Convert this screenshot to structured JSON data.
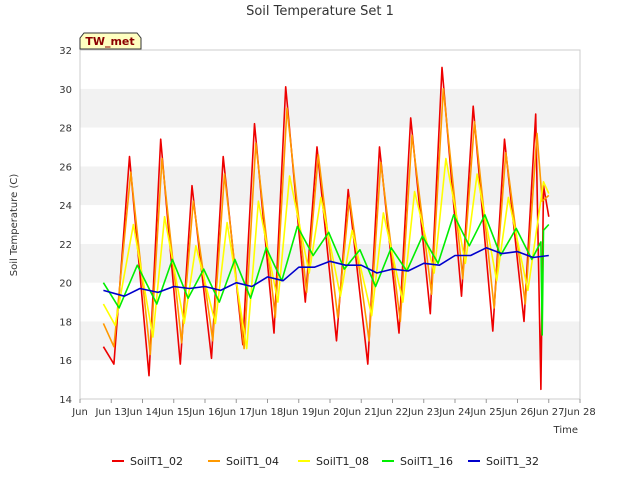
{
  "chart_data": {
    "type": "line",
    "title": "Soil Temperature Set 1",
    "xlabel": "Time",
    "ylabel": "Soil Temperature (C)",
    "badge": "TW_met",
    "xlim": [
      "2024-06-12",
      "2024-06-28"
    ],
    "ylim": [
      14,
      32
    ],
    "yticks": [
      14,
      16,
      18,
      20,
      22,
      24,
      26,
      28,
      30,
      32
    ],
    "xticks": [
      "Jun 13",
      "Jun 14",
      "Jun 15",
      "Jun 16",
      "Jun 17",
      "Jun 18",
      "Jun 19",
      "Jun 20",
      "Jun 21",
      "Jun 22",
      "Jun 23",
      "Jun 24",
      "Jun 25",
      "Jun 26",
      "Jun 27",
      "Jun 28"
    ],
    "x_start_label": "Jun",
    "grid": "horizontal bands",
    "legend_position": "bottom",
    "series": [
      {
        "name": "SoilT1_02",
        "color": "#ee0000",
        "values": [
          [
            "2024-06-12 18:00",
            16.7
          ],
          [
            "2024-06-13 02:00",
            15.8
          ],
          [
            "2024-06-13 14:00",
            26.5
          ],
          [
            "2024-06-14 05:00",
            15.2
          ],
          [
            "2024-06-14 14:00",
            27.4
          ],
          [
            "2024-06-15 05:00",
            15.8
          ],
          [
            "2024-06-15 14:00",
            25.0
          ],
          [
            "2024-06-16 05:00",
            16.1
          ],
          [
            "2024-06-16 14:00",
            26.5
          ],
          [
            "2024-06-17 05:00",
            16.8
          ],
          [
            "2024-06-17 14:00",
            28.2
          ],
          [
            "2024-06-18 05:00",
            17.4
          ],
          [
            "2024-06-18 14:00",
            30.1
          ],
          [
            "2024-06-19 05:00",
            19.0
          ],
          [
            "2024-06-19 14:00",
            27.0
          ],
          [
            "2024-06-20 05:00",
            17.0
          ],
          [
            "2024-06-20 14:00",
            24.8
          ],
          [
            "2024-06-21 05:00",
            15.8
          ],
          [
            "2024-06-21 14:00",
            27.0
          ],
          [
            "2024-06-22 05:00",
            17.4
          ],
          [
            "2024-06-22 14:00",
            28.5
          ],
          [
            "2024-06-23 05:00",
            18.4
          ],
          [
            "2024-06-23 14:00",
            31.1
          ],
          [
            "2024-06-24 05:00",
            19.3
          ],
          [
            "2024-06-24 14:00",
            29.1
          ],
          [
            "2024-06-25 05:00",
            17.5
          ],
          [
            "2024-06-25 14:00",
            27.4
          ],
          [
            "2024-06-26 05:00",
            18.0
          ],
          [
            "2024-06-26 14:00",
            28.7
          ],
          [
            "2024-06-26 18:00",
            14.5
          ],
          [
            "2024-06-26 20:00",
            25.0
          ],
          [
            "2024-06-27 00:00",
            23.4
          ]
        ]
      },
      {
        "name": "SoilT1_04",
        "color": "#ff9900",
        "values": [
          [
            "2024-06-12 18:00",
            17.9
          ],
          [
            "2024-06-13 02:00",
            16.7
          ],
          [
            "2024-06-13 15:00",
            25.7
          ],
          [
            "2024-06-14 06:00",
            16.3
          ],
          [
            "2024-06-14 15:00",
            26.4
          ],
          [
            "2024-06-15 06:00",
            16.9
          ],
          [
            "2024-06-15 15:00",
            24.2
          ],
          [
            "2024-06-16 06:00",
            17.0
          ],
          [
            "2024-06-16 15:00",
            25.6
          ],
          [
            "2024-06-17 06:00",
            16.6
          ],
          [
            "2024-06-17 15:00",
            27.2
          ],
          [
            "2024-06-18 06:00",
            18.2
          ],
          [
            "2024-06-18 15:00",
            29.0
          ],
          [
            "2024-06-19 06:00",
            19.5
          ],
          [
            "2024-06-19 15:00",
            26.6
          ],
          [
            "2024-06-20 06:00",
            18.2
          ],
          [
            "2024-06-20 15:00",
            24.4
          ],
          [
            "2024-06-21 06:00",
            17.0
          ],
          [
            "2024-06-21 15:00",
            26.2
          ],
          [
            "2024-06-22 06:00",
            18.0
          ],
          [
            "2024-06-22 15:00",
            27.6
          ],
          [
            "2024-06-23 06:00",
            19.4
          ],
          [
            "2024-06-23 15:00",
            30.0
          ],
          [
            "2024-06-24 06:00",
            20.2
          ],
          [
            "2024-06-24 15:00",
            28.3
          ],
          [
            "2024-06-25 06:00",
            18.7
          ],
          [
            "2024-06-25 15:00",
            26.7
          ],
          [
            "2024-06-26 06:00",
            18.9
          ],
          [
            "2024-06-26 15:00",
            27.7
          ],
          [
            "2024-06-26 19:00",
            24.2
          ],
          [
            "2024-06-27 00:00",
            24.5
          ]
        ]
      },
      {
        "name": "SoilT1_08",
        "color": "#ffff00",
        "values": [
          [
            "2024-06-12 18:00",
            18.9
          ],
          [
            "2024-06-13 03:00",
            17.8
          ],
          [
            "2024-06-13 17:00",
            23.0
          ],
          [
            "2024-06-14 08:00",
            17.2
          ],
          [
            "2024-06-14 17:00",
            23.4
          ],
          [
            "2024-06-15 08:00",
            17.9
          ],
          [
            "2024-06-15 17:00",
            21.9
          ],
          [
            "2024-06-16 08:00",
            17.9
          ],
          [
            "2024-06-16 17:00",
            23.1
          ],
          [
            "2024-06-17 08:00",
            16.6
          ],
          [
            "2024-06-17 17:00",
            24.2
          ],
          [
            "2024-06-18 08:00",
            19.0
          ],
          [
            "2024-06-18 17:00",
            25.5
          ],
          [
            "2024-06-19 08:00",
            20.5
          ],
          [
            "2024-06-19 17:00",
            24.4
          ],
          [
            "2024-06-20 08:00",
            19.3
          ],
          [
            "2024-06-20 17:00",
            22.7
          ],
          [
            "2024-06-21 08:00",
            18.3
          ],
          [
            "2024-06-21 17:00",
            23.6
          ],
          [
            "2024-06-22 08:00",
            19.0
          ],
          [
            "2024-06-22 17:00",
            24.7
          ],
          [
            "2024-06-23 08:00",
            20.5
          ],
          [
            "2024-06-23 17:00",
            26.4
          ],
          [
            "2024-06-24 08:00",
            21.0
          ],
          [
            "2024-06-24 17:00",
            25.6
          ],
          [
            "2024-06-25 08:00",
            20.1
          ],
          [
            "2024-06-25 17:00",
            24.4
          ],
          [
            "2024-06-26 08:00",
            19.6
          ],
          [
            "2024-06-26 20:00",
            25.2
          ],
          [
            "2024-06-27 00:00",
            24.6
          ]
        ]
      },
      {
        "name": "SoilT1_16",
        "color": "#00ee00",
        "values": [
          [
            "2024-06-12 18:00",
            20.0
          ],
          [
            "2024-06-13 06:00",
            18.7
          ],
          [
            "2024-06-13 20:00",
            20.9
          ],
          [
            "2024-06-14 11:00",
            18.9
          ],
          [
            "2024-06-14 23:00",
            21.2
          ],
          [
            "2024-06-15 11:00",
            19.2
          ],
          [
            "2024-06-15 23:00",
            20.7
          ],
          [
            "2024-06-16 11:00",
            19.0
          ],
          [
            "2024-06-16 23:00",
            21.2
          ],
          [
            "2024-06-17 11:00",
            19.2
          ],
          [
            "2024-06-17 23:00",
            21.8
          ],
          [
            "2024-06-18 11:00",
            20.1
          ],
          [
            "2024-06-18 23:00",
            22.9
          ],
          [
            "2024-06-19 11:00",
            21.4
          ],
          [
            "2024-06-19 23:00",
            22.6
          ],
          [
            "2024-06-20 11:00",
            20.7
          ],
          [
            "2024-06-20 23:00",
            21.7
          ],
          [
            "2024-06-21 11:00",
            19.8
          ],
          [
            "2024-06-21 23:00",
            21.8
          ],
          [
            "2024-06-22 11:00",
            20.6
          ],
          [
            "2024-06-22 23:00",
            22.4
          ],
          [
            "2024-06-23 11:00",
            21.0
          ],
          [
            "2024-06-23 23:00",
            23.5
          ],
          [
            "2024-06-24 11:00",
            21.9
          ],
          [
            "2024-06-24 23:00",
            23.5
          ],
          [
            "2024-06-25 11:00",
            21.4
          ],
          [
            "2024-06-25 23:00",
            22.8
          ],
          [
            "2024-06-26 11:00",
            21.2
          ],
          [
            "2024-06-26 18:00",
            22.1
          ],
          [
            "2024-06-26 19:00",
            17.3
          ],
          [
            "2024-06-26 20:00",
            22.7
          ],
          [
            "2024-06-27 00:00",
            23.0
          ]
        ]
      },
      {
        "name": "SoilT1_32",
        "color": "#0000cc",
        "values": [
          [
            "2024-06-12 18:00",
            19.6
          ],
          [
            "2024-06-13 10:00",
            19.3
          ],
          [
            "2024-06-13 22:00",
            19.7
          ],
          [
            "2024-06-14 12:00",
            19.5
          ],
          [
            "2024-06-15 00:00",
            19.8
          ],
          [
            "2024-06-15 12:00",
            19.7
          ],
          [
            "2024-06-16 00:00",
            19.8
          ],
          [
            "2024-06-16 12:00",
            19.6
          ],
          [
            "2024-06-17 00:00",
            20.0
          ],
          [
            "2024-06-17 12:00",
            19.8
          ],
          [
            "2024-06-18 00:00",
            20.3
          ],
          [
            "2024-06-18 12:00",
            20.1
          ],
          [
            "2024-06-19 00:00",
            20.8
          ],
          [
            "2024-06-19 12:00",
            20.8
          ],
          [
            "2024-06-20 00:00",
            21.1
          ],
          [
            "2024-06-20 12:00",
            20.9
          ],
          [
            "2024-06-21 00:00",
            20.9
          ],
          [
            "2024-06-21 12:00",
            20.5
          ],
          [
            "2024-06-22 00:00",
            20.7
          ],
          [
            "2024-06-22 12:00",
            20.6
          ],
          [
            "2024-06-23 00:00",
            21.0
          ],
          [
            "2024-06-23 12:00",
            20.9
          ],
          [
            "2024-06-24 00:00",
            21.4
          ],
          [
            "2024-06-24 12:00",
            21.4
          ],
          [
            "2024-06-25 00:00",
            21.8
          ],
          [
            "2024-06-25 12:00",
            21.5
          ],
          [
            "2024-06-26 00:00",
            21.6
          ],
          [
            "2024-06-26 12:00",
            21.3
          ],
          [
            "2024-06-27 00:00",
            21.4
          ]
        ]
      }
    ]
  }
}
